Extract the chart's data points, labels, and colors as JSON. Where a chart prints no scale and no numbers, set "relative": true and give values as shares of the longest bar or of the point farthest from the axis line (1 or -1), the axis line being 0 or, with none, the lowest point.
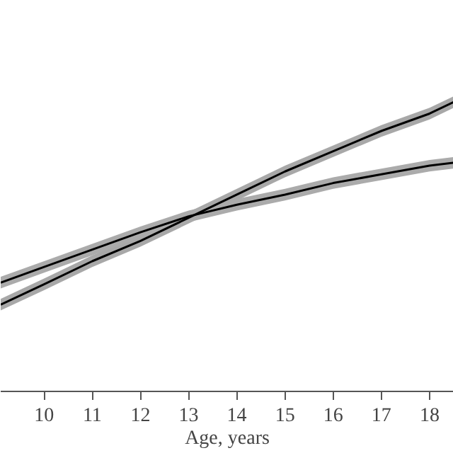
{
  "chart_data": {
    "type": "line",
    "xlabel": "Age, years",
    "relative": true,
    "xlim": [
      9.1,
      18.5
    ],
    "xticks": [
      10,
      11,
      12,
      13,
      14,
      15,
      16,
      17,
      18
    ],
    "grid": false,
    "series": [
      {
        "color": "#000000",
        "x": [
          9.1,
          10,
          11,
          12,
          13,
          14,
          15,
          16,
          17,
          18,
          18.5
        ],
        "values": [
          0.3,
          0.37,
          0.45,
          0.52,
          0.6,
          0.68,
          0.76,
          0.83,
          0.9,
          0.96,
          1.0
        ],
        "lower": [
          0.28,
          0.35,
          0.43,
          0.5,
          0.58,
          0.66,
          0.74,
          0.81,
          0.88,
          0.94,
          0.98
        ],
        "upper": [
          0.32,
          0.39,
          0.47,
          0.54,
          0.62,
          0.7,
          0.78,
          0.85,
          0.92,
          0.98,
          1.02
        ]
      },
      {
        "color": "#000000",
        "x": [
          9.1,
          10,
          11,
          12,
          13,
          14,
          15,
          16,
          17,
          18,
          18.5
        ],
        "values": [
          0.376,
          0.43,
          0.49,
          0.55,
          0.605,
          0.645,
          0.68,
          0.72,
          0.75,
          0.78,
          0.79
        ],
        "lower": [
          0.356,
          0.41,
          0.47,
          0.53,
          0.585,
          0.625,
          0.66,
          0.7,
          0.73,
          0.76,
          0.77
        ],
        "upper": [
          0.396,
          0.45,
          0.51,
          0.57,
          0.625,
          0.665,
          0.7,
          0.74,
          0.77,
          0.8,
          0.81
        ]
      }
    ]
  }
}
